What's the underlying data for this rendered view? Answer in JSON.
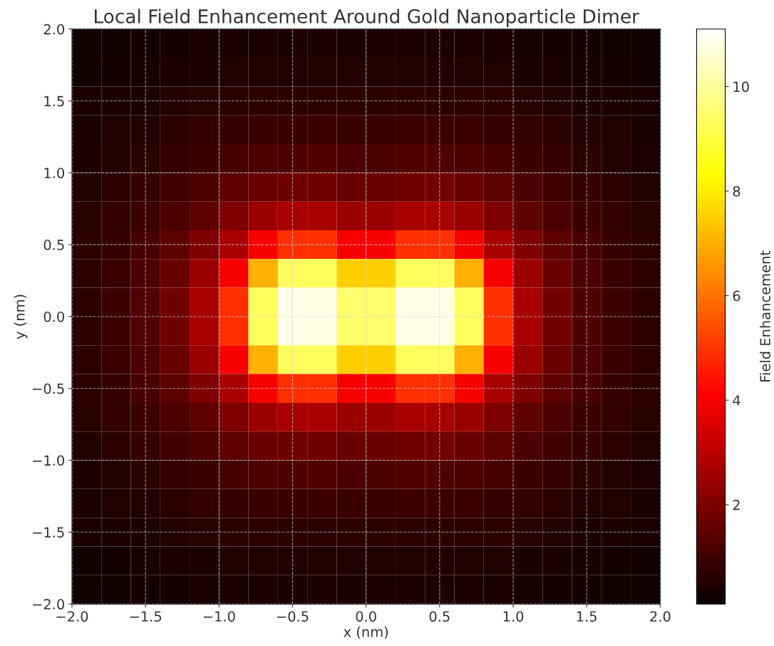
{
  "chart_data": {
    "type": "heatmap",
    "title": "Local Field Enhancement Around Gold Nanoparticle Dimer",
    "xlabel": "x (nm)",
    "ylabel": "y (nm)",
    "clabel": "Field Enhancement",
    "x": [
      -1.9,
      -1.7,
      -1.5,
      -1.3,
      -1.1,
      -0.9,
      -0.7,
      -0.5,
      -0.3,
      -0.1,
      0.1,
      0.3,
      0.5,
      0.7,
      0.9,
      1.1,
      1.3,
      1.5,
      1.7,
      1.9
    ],
    "y": [
      1.9,
      1.7,
      1.5,
      1.3,
      1.1,
      0.9,
      0.7,
      0.5,
      0.3,
      0.1,
      -0.1,
      -0.3,
      -0.5,
      -0.7,
      -0.9,
      -1.1,
      -1.3,
      -1.5,
      -1.7,
      -1.9
    ],
    "xlim": [
      -2.0,
      2.0
    ],
    "ylim": [
      -2.0,
      2.0
    ],
    "xticks": [
      {
        "value": -2.0,
        "label": "−2.0"
      },
      {
        "value": -1.5,
        "label": "−1.5"
      },
      {
        "value": -1.0,
        "label": "−1.0"
      },
      {
        "value": -0.5,
        "label": "−0.5"
      },
      {
        "value": 0.0,
        "label": "0.0"
      },
      {
        "value": 0.5,
        "label": "0.5"
      },
      {
        "value": 1.0,
        "label": "1.0"
      },
      {
        "value": 1.5,
        "label": "1.5"
      },
      {
        "value": 2.0,
        "label": "2.0"
      }
    ],
    "yticks": [
      {
        "value": -2.0,
        "label": "−2.0"
      },
      {
        "value": -1.5,
        "label": "−1.5"
      },
      {
        "value": -1.0,
        "label": "−1.0"
      },
      {
        "value": -0.5,
        "label": "−0.5"
      },
      {
        "value": 0.0,
        "label": "0.0"
      },
      {
        "value": 0.5,
        "label": "0.5"
      },
      {
        "value": 1.0,
        "label": "1.0"
      },
      {
        "value": 1.5,
        "label": "1.5"
      },
      {
        "value": 2.0,
        "label": "2.0"
      }
    ],
    "clim": [
      0.1,
      11.1
    ],
    "cticks": [
      2,
      4,
      6,
      8,
      10
    ],
    "grid": true,
    "cells": [
      [
        0.23,
        0.26,
        0.29,
        0.31,
        0.34,
        0.38,
        0.4,
        0.41,
        0.41,
        0.4,
        0.4,
        0.41,
        0.41,
        0.4,
        0.38,
        0.34,
        0.31,
        0.29,
        0.26,
        0.23
      ],
      [
        0.27,
        0.3,
        0.34,
        0.4,
        0.44,
        0.48,
        0.5,
        0.52,
        0.52,
        0.5,
        0.5,
        0.52,
        0.52,
        0.5,
        0.48,
        0.44,
        0.4,
        0.34,
        0.3,
        0.27
      ],
      [
        0.33,
        0.38,
        0.44,
        0.5,
        0.58,
        0.62,
        0.68,
        0.7,
        0.7,
        0.68,
        0.68,
        0.7,
        0.7,
        0.68,
        0.62,
        0.58,
        0.5,
        0.44,
        0.38,
        0.33
      ],
      [
        0.38,
        0.45,
        0.52,
        0.62,
        0.75,
        0.8,
        0.9,
        0.95,
        0.95,
        0.9,
        0.9,
        0.95,
        0.95,
        0.9,
        0.8,
        0.75,
        0.62,
        0.52,
        0.45,
        0.38
      ],
      [
        0.44,
        0.52,
        0.65,
        0.8,
        0.95,
        1.1,
        1.2,
        1.3,
        1.3,
        1.2,
        1.2,
        1.3,
        1.3,
        1.2,
        1.1,
        0.95,
        0.8,
        0.65,
        0.52,
        0.44
      ],
      [
        0.5,
        0.62,
        0.8,
        1.0,
        1.2,
        1.45,
        1.65,
        1.8,
        1.8,
        1.65,
        1.65,
        1.8,
        1.8,
        1.65,
        1.45,
        1.2,
        1.0,
        0.8,
        0.62,
        0.5
      ],
      [
        0.58,
        0.75,
        0.95,
        1.2,
        1.5,
        2.0,
        2.5,
        2.7,
        2.7,
        2.5,
        2.5,
        2.7,
        2.7,
        2.5,
        2.0,
        1.5,
        1.2,
        0.95,
        0.75,
        0.58
      ],
      [
        0.62,
        0.8,
        1.1,
        1.45,
        2.0,
        2.7,
        4.0,
        4.9,
        4.9,
        4.0,
        4.0,
        4.9,
        4.9,
        4.0,
        2.7,
        2.0,
        1.45,
        1.1,
        0.8,
        0.62
      ],
      [
        0.68,
        0.9,
        1.2,
        1.65,
        2.5,
        4.0,
        7.0,
        9.3,
        9.3,
        7.5,
        7.5,
        9.3,
        9.3,
        7.0,
        4.0,
        2.5,
        1.65,
        1.2,
        0.9,
        0.68
      ],
      [
        0.7,
        0.95,
        1.3,
        1.8,
        2.7,
        4.9,
        9.3,
        10.8,
        10.8,
        9.5,
        9.5,
        10.8,
        10.8,
        9.3,
        4.9,
        2.7,
        1.8,
        1.3,
        0.95,
        0.7
      ],
      [
        0.7,
        0.95,
        1.3,
        1.8,
        2.7,
        4.9,
        9.3,
        10.8,
        10.8,
        9.5,
        9.5,
        10.8,
        10.8,
        9.3,
        4.9,
        2.7,
        1.8,
        1.3,
        0.95,
        0.7
      ],
      [
        0.68,
        0.9,
        1.2,
        1.65,
        2.5,
        4.0,
        7.0,
        9.3,
        9.3,
        7.5,
        7.5,
        9.3,
        9.3,
        7.0,
        4.0,
        2.5,
        1.65,
        1.2,
        0.9,
        0.68
      ],
      [
        0.62,
        0.8,
        1.1,
        1.45,
        2.0,
        2.7,
        4.0,
        4.9,
        4.9,
        4.0,
        4.0,
        4.9,
        4.9,
        4.0,
        2.7,
        2.0,
        1.45,
        1.1,
        0.8,
        0.62
      ],
      [
        0.58,
        0.75,
        0.95,
        1.2,
        1.5,
        2.0,
        2.5,
        2.7,
        2.7,
        2.5,
        2.5,
        2.7,
        2.7,
        2.5,
        2.0,
        1.5,
        1.2,
        0.95,
        0.75,
        0.58
      ],
      [
        0.5,
        0.62,
        0.8,
        1.0,
        1.2,
        1.45,
        1.65,
        1.8,
        1.8,
        1.65,
        1.65,
        1.8,
        1.8,
        1.65,
        1.45,
        1.2,
        1.0,
        0.8,
        0.62,
        0.5
      ],
      [
        0.44,
        0.52,
        0.65,
        0.8,
        0.95,
        1.1,
        1.2,
        1.3,
        1.3,
        1.2,
        1.2,
        1.3,
        1.3,
        1.2,
        1.1,
        0.95,
        0.8,
        0.65,
        0.52,
        0.44
      ],
      [
        0.38,
        0.45,
        0.52,
        0.62,
        0.75,
        0.8,
        0.9,
        0.95,
        0.95,
        0.9,
        0.9,
        0.95,
        0.95,
        0.9,
        0.8,
        0.75,
        0.62,
        0.52,
        0.45,
        0.38
      ],
      [
        0.33,
        0.38,
        0.44,
        0.5,
        0.58,
        0.62,
        0.68,
        0.7,
        0.7,
        0.68,
        0.68,
        0.7,
        0.7,
        0.68,
        0.62,
        0.58,
        0.5,
        0.44,
        0.38,
        0.33
      ],
      [
        0.27,
        0.3,
        0.34,
        0.4,
        0.44,
        0.48,
        0.5,
        0.52,
        0.52,
        0.5,
        0.5,
        0.52,
        0.52,
        0.5,
        0.48,
        0.44,
        0.4,
        0.34,
        0.3,
        0.27
      ],
      [
        0.23,
        0.26,
        0.29,
        0.31,
        0.34,
        0.38,
        0.4,
        0.41,
        0.41,
        0.4,
        0.4,
        0.41,
        0.41,
        0.4,
        0.38,
        0.34,
        0.31,
        0.29,
        0.26,
        0.23
      ]
    ]
  }
}
